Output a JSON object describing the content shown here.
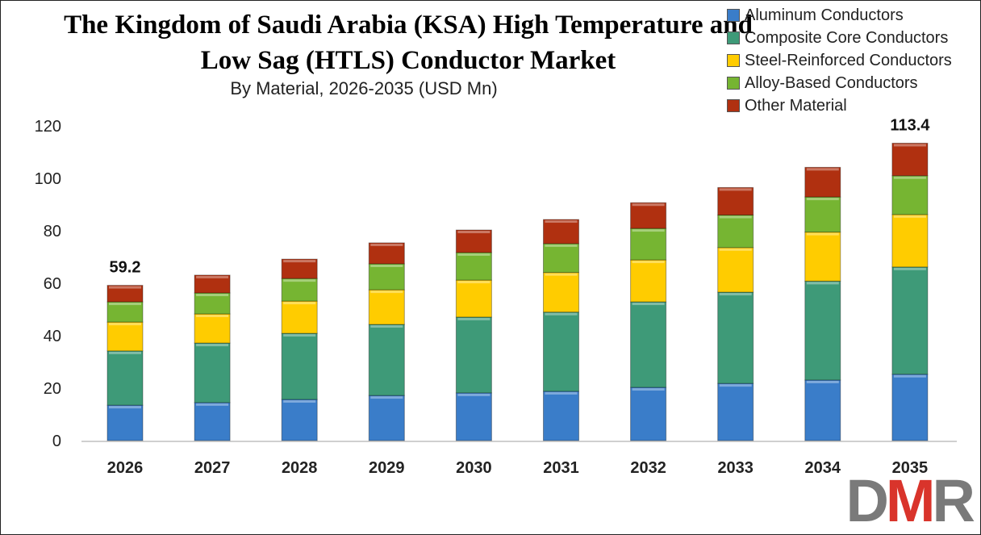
{
  "chart_data": {
    "type": "bar",
    "stacked": true,
    "title": "The Kingdom of Saudi Arabia (KSA) High Temperature and Low Sag (HTLS) Conductor Market",
    "subtitle": "By Material, 2026-2035 (USD Mn)",
    "xlabel": "",
    "ylabel": "",
    "ylim": [
      0,
      120
    ],
    "yticks": [
      0,
      20,
      40,
      60,
      80,
      100,
      120
    ],
    "grid": false,
    "legend_position": "top-right",
    "categories": [
      "2026",
      "2027",
      "2028",
      "2029",
      "2030",
      "2031",
      "2032",
      "2033",
      "2034",
      "2035"
    ],
    "series": [
      {
        "name": "Aluminum Conductors",
        "color": "#3a7dc9",
        "values": [
          13.5,
          14.5,
          15.7,
          17.2,
          18.2,
          18.8,
          20.3,
          21.8,
          23.1,
          25.3
        ]
      },
      {
        "name": "Composite Core Conductors",
        "color": "#3e9a78",
        "values": [
          20.7,
          22.7,
          25.2,
          27.1,
          28.9,
          30.2,
          32.6,
          34.8,
          37.7,
          40.9
        ]
      },
      {
        "name": "Steel-Reinforced Conductors",
        "color": "#ffcc00",
        "values": [
          11.0,
          11.1,
          12.3,
          13.2,
          14.1,
          15.1,
          16.0,
          17.0,
          18.7,
          20.0
        ]
      },
      {
        "name": "Alloy-Based Conductors",
        "color": "#76b532",
        "values": [
          7.7,
          8.0,
          8.6,
          9.9,
          10.5,
          11.0,
          12.0,
          12.4,
          13.4,
          14.8
        ]
      },
      {
        "name": "Other Material",
        "color": "#b03010",
        "values": [
          6.3,
          6.8,
          7.4,
          8.0,
          8.6,
          9.2,
          9.8,
          10.5,
          11.3,
          12.4
        ]
      }
    ],
    "data_labels": [
      {
        "category": "2026",
        "text": "59.2"
      },
      {
        "category": "2035",
        "text": "113.4"
      }
    ]
  },
  "logo": {
    "text": "DMR",
    "colors": [
      "#7a7a7a",
      "#d9342b",
      "#7a7a7a"
    ]
  }
}
